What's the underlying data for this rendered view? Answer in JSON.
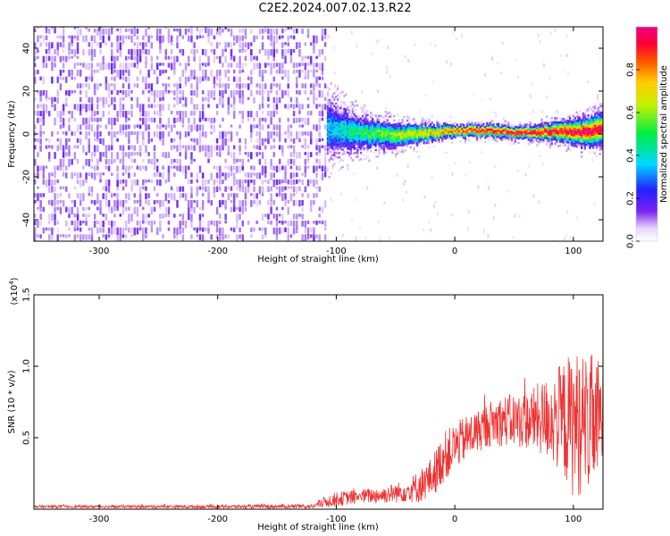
{
  "page_title": "C2E2.2024.007.02.13.R22",
  "colors": {
    "snr_line": "#ee3333",
    "spectrogram_noise": "#7a22ee",
    "axis": "#000000"
  },
  "chart_data": [
    {
      "type": "heatmap",
      "xlabel": "Height of straight line (km)",
      "ylabel": "Frequency (Hz)",
      "xlim": [
        -355,
        125
      ],
      "ylim": [
        -50,
        50
      ],
      "xticks": [
        -300,
        -200,
        -100,
        0,
        100
      ],
      "yticks": [
        -40,
        -20,
        0,
        20,
        40
      ],
      "colorbar": {
        "label": "Normalized spectral amplitude",
        "range": [
          0.0,
          1.0
        ],
        "ticks": [
          0.0,
          0.2,
          0.4,
          0.6,
          0.8
        ],
        "tick_labels": [
          "0.0",
          "0.2",
          "0.4",
          "0.6",
          "0.8"
        ],
        "colormap": "rainbow (white - purple - blue - cyan - green - yellow - orange - red - magenta)"
      },
      "regions": [
        {
          "description": "diffuse noise",
          "x_range": [
            -355,
            -108
          ],
          "freq_range": [
            -50,
            50
          ],
          "amplitude_range": [
            0.0,
            0.15
          ]
        },
        {
          "description": "signal band",
          "x_range": [
            -108,
            125
          ],
          "amplitude_range": [
            0.2,
            0.95
          ]
        }
      ],
      "signal_center_freq": {
        "x": [
          -108,
          -80,
          -50,
          -20,
          0,
          30,
          60,
          90,
          110,
          125
        ],
        "hz": [
          2,
          0,
          -1,
          0,
          1,
          1,
          0,
          1,
          0,
          2
        ]
      },
      "signal_half_width": {
        "x": [
          -108,
          -80,
          -50,
          -20,
          0,
          30,
          60,
          90,
          110,
          125
        ],
        "hz": [
          14,
          8,
          6,
          4,
          3,
          3,
          3,
          5,
          7,
          8
        ]
      }
    },
    {
      "type": "line",
      "xlabel": "Height of straight line (km)",
      "ylabel": "SNR (10 * v/v)",
      "multiplier_label": "(x10",
      "multiplier_exp": "4",
      "multiplier_close": ")",
      "xlim": [
        -355,
        125
      ],
      "ylim": [
        0,
        1.5
      ],
      "xticks": [
        -300,
        -200,
        -100,
        0,
        100
      ],
      "yticks": [
        0.5,
        1.0,
        1.5
      ],
      "ytick_labels": [
        "0.5",
        "1.0",
        "1.5"
      ],
      "series": [
        {
          "x": [
            -355,
            -300,
            -200,
            -120,
            -110,
            -100,
            -80,
            -60,
            -40,
            -30,
            -20,
            -15,
            -10,
            0,
            10,
            20,
            30,
            40,
            60,
            80,
            90,
            100,
            110,
            120,
            125
          ],
          "y_mean": [
            0.018,
            0.018,
            0.018,
            0.02,
            0.05,
            0.07,
            0.09,
            0.1,
            0.13,
            0.16,
            0.22,
            0.28,
            0.36,
            0.44,
            0.5,
            0.55,
            0.6,
            0.62,
            0.62,
            0.64,
            0.63,
            0.6,
            0.6,
            0.62,
            0.63
          ],
          "y_spread": [
            0.01,
            0.01,
            0.012,
            0.015,
            0.04,
            0.05,
            0.05,
            0.06,
            0.08,
            0.12,
            0.14,
            0.16,
            0.18,
            0.16,
            0.16,
            0.15,
            0.16,
            0.18,
            0.2,
            0.3,
            0.4,
            0.52,
            0.5,
            0.45,
            0.35
          ]
        }
      ]
    }
  ]
}
